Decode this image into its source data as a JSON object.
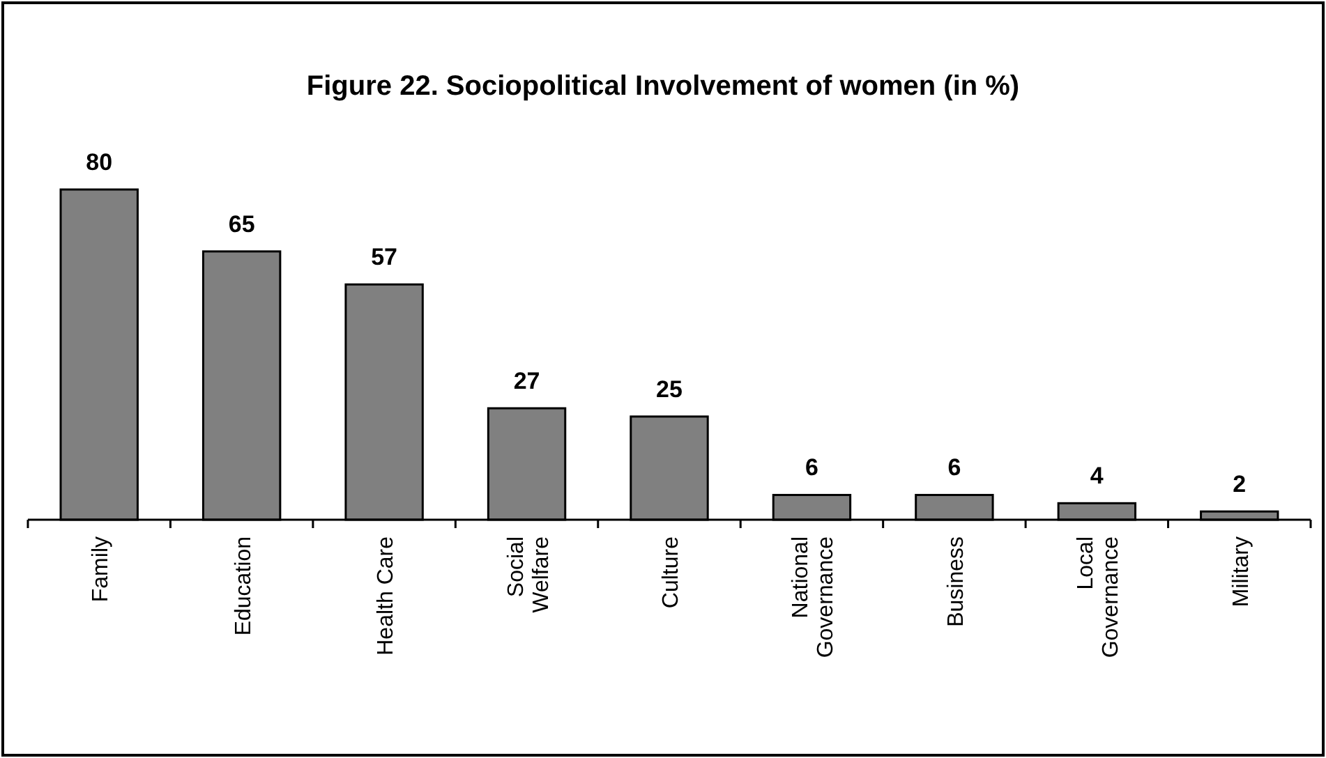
{
  "chart_data": {
    "type": "bar",
    "title": "Figure 22. Sociopolitical Involvement of women (in %)",
    "categories": [
      "Family",
      "Education",
      "Health Care",
      "Social Welfare",
      "Culture",
      "National Governance",
      "Business",
      "Local Governance",
      "Military"
    ],
    "values": [
      80,
      65,
      57,
      27,
      25,
      6,
      6,
      4,
      2
    ],
    "color": "#808080",
    "data_labels": true
  }
}
